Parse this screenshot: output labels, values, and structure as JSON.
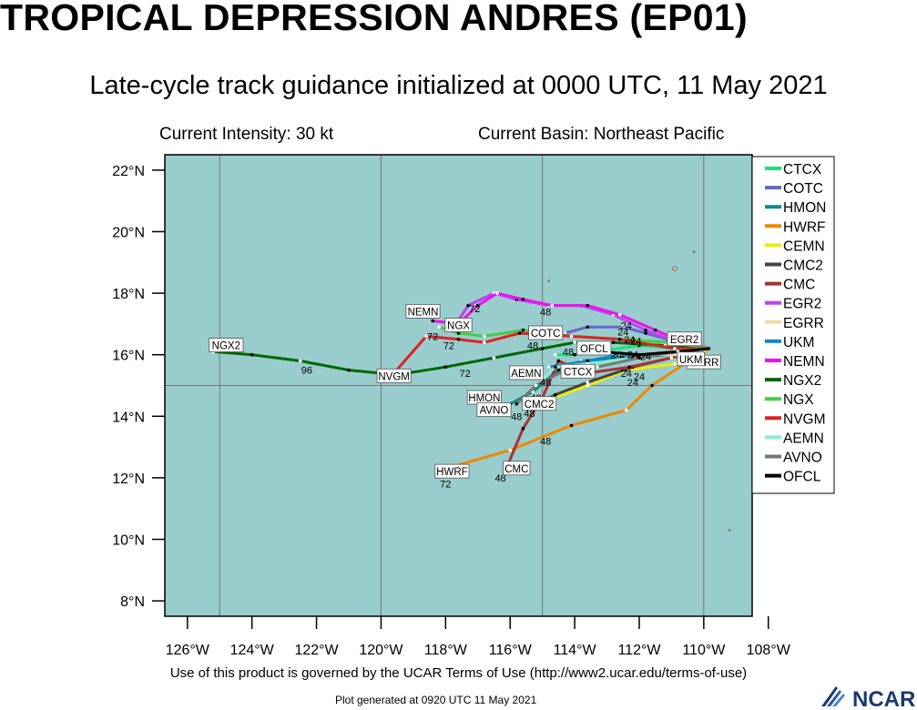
{
  "header": {
    "title": "TROPICAL DEPRESSION ANDRES (EP01)",
    "subtitle": "Late-cycle track guidance initialized at 0000 UTC, 11 May 2021",
    "intensity": "Current Intensity: 30 kt",
    "basin": "Current Basin: Northeast Pacific"
  },
  "footer": {
    "terms": "Use of this product is governed by the UCAR Terms of Use (http://www2.ucar.edu/terms-of-use)",
    "generated": "Plot generated at 0920 UTC   11 May 2021",
    "logo_text": "NCAR"
  },
  "chart_data": {
    "type": "line",
    "title": "TROPICAL DEPRESSION ANDRES (EP01)",
    "subtitle": "Late-cycle track guidance initialized at 0000 UTC, 11 May 2021",
    "xlabel": "",
    "ylabel": "",
    "xlim": [
      -126.7,
      -108.5
    ],
    "ylim": [
      7.5,
      22.5
    ],
    "x_ticks": [
      -126,
      -124,
      -122,
      -120,
      -118,
      -116,
      -114,
      -112,
      -110,
      -108
    ],
    "x_tick_labels": [
      "126°W",
      "124°W",
      "122°W",
      "120°W",
      "118°W",
      "116°W",
      "114°W",
      "112°W",
      "110°W",
      "108°W"
    ],
    "y_ticks": [
      8,
      10,
      12,
      14,
      16,
      18,
      20,
      22
    ],
    "y_tick_labels": [
      "8°N",
      "10°N",
      "12°N",
      "14°N",
      "16°N",
      "18°N",
      "20°N",
      "22°N"
    ],
    "grid": true,
    "grid_lines_x": [
      -125,
      -120,
      -115,
      -110
    ],
    "grid_lines_y": [
      15
    ],
    "colors": {
      "ocean": "#99cccc",
      "land": "#d8b48c",
      "frame": "#000000"
    },
    "legend_position": "right",
    "series": [
      {
        "name": "CTCX",
        "color": "#22dd77",
        "points": [
          [
            -109.8,
            16.2
          ],
          [
            -110.8,
            16.2
          ],
          [
            -112.0,
            16.3
          ],
          [
            -113.3,
            16.1
          ],
          [
            -114.0,
            16.0
          ],
          [
            -114.6,
            16.0
          ]
        ],
        "labels": [
          {
            "text": "CTCX",
            "lon": -113.9,
            "lat": 15.45,
            "box": true
          }
        ]
      },
      {
        "name": "COTC",
        "color": "#6666cc",
        "points": [
          [
            -109.8,
            16.2
          ],
          [
            -110.8,
            16.4
          ],
          [
            -111.8,
            16.7
          ],
          [
            -112.5,
            16.9
          ],
          [
            -113.6,
            16.9
          ],
          [
            -114.3,
            16.7
          ],
          [
            -115.0,
            16.6
          ]
        ],
        "labels": [
          {
            "text": "COTC",
            "lon": -114.9,
            "lat": 16.7,
            "box": true
          }
        ]
      },
      {
        "name": "HMON",
        "color": "#118888",
        "points": [
          [
            -109.8,
            16.2
          ],
          [
            -111.0,
            16.0
          ],
          [
            -112.5,
            15.9
          ],
          [
            -113.8,
            15.8
          ],
          [
            -114.5,
            15.5
          ],
          [
            -115.3,
            14.8
          ],
          [
            -116.0,
            14.4
          ]
        ],
        "labels": [
          {
            "text": "HMON",
            "lon": -116.8,
            "lat": 14.6,
            "box": true
          },
          {
            "text": "48",
            "lon": -115.2,
            "lat": 14.6,
            "box": false
          }
        ]
      },
      {
        "name": "HWRF",
        "color": "#ee8800",
        "points": [
          [
            -109.8,
            16.2
          ],
          [
            -110.6,
            15.7
          ],
          [
            -111.6,
            15.0
          ],
          [
            -112.4,
            14.2
          ],
          [
            -114.1,
            13.7
          ],
          [
            -116.0,
            12.9
          ],
          [
            -118.0,
            12.3
          ]
        ],
        "labels": [
          {
            "text": "HWRF",
            "lon": -117.8,
            "lat": 12.2,
            "box": true
          },
          {
            "text": "48",
            "lon": -114.9,
            "lat": 13.2,
            "box": false
          },
          {
            "text": "72",
            "lon": -118.0,
            "lat": 11.8,
            "box": false
          }
        ]
      },
      {
        "name": "CEMN",
        "color": "#eeee00",
        "points": [
          [
            -109.8,
            16.2
          ],
          [
            -110.9,
            15.7
          ],
          [
            -112.4,
            15.5
          ],
          [
            -113.6,
            15.0
          ],
          [
            -114.9,
            14.5
          ]
        ],
        "labels": []
      },
      {
        "name": "CMC2",
        "color": "#444444",
        "points": [
          [
            -109.8,
            16.2
          ],
          [
            -111.0,
            15.9
          ],
          [
            -112.2,
            15.6
          ],
          [
            -113.6,
            15.1
          ],
          [
            -114.6,
            14.7
          ],
          [
            -115.3,
            14.3
          ]
        ],
        "labels": [
          {
            "text": "CMC2",
            "lon": -115.1,
            "lat": 14.4,
            "box": true
          },
          {
            "text": "48",
            "lon": -115.4,
            "lat": 14.1,
            "box": false
          }
        ]
      },
      {
        "name": "CMC",
        "color": "#aa3333",
        "points": [
          [
            -109.8,
            16.2
          ],
          [
            -111.0,
            15.9
          ],
          [
            -112.3,
            15.6
          ],
          [
            -113.6,
            15.4
          ],
          [
            -114.5,
            15.8
          ],
          [
            -115.0,
            14.6
          ],
          [
            -115.6,
            13.6
          ],
          [
            -116.2,
            12.1
          ]
        ],
        "labels": [
          {
            "text": "CMC",
            "lon": -115.8,
            "lat": 12.3,
            "box": true
          },
          {
            "text": "48",
            "lon": -116.3,
            "lat": 12.0,
            "box": false
          }
        ]
      },
      {
        "name": "EGR2",
        "color": "#bb44ee",
        "points": [
          [
            -109.8,
            16.2
          ],
          [
            -110.8,
            16.4
          ],
          [
            -111.8,
            16.8
          ],
          [
            -112.8,
            17.3
          ],
          [
            -113.8,
            17.6
          ],
          [
            -114.8,
            17.6
          ],
          [
            -115.8,
            17.8
          ],
          [
            -116.5,
            18.0
          ],
          [
            -117.3,
            17.6
          ],
          [
            -117.8,
            16.8
          ]
        ],
        "labels": [
          {
            "text": "EGR2",
            "lon": -110.6,
            "lat": 16.5,
            "box": true
          },
          {
            "text": "48",
            "lon": -114.9,
            "lat": 17.4,
            "box": false
          },
          {
            "text": "72",
            "lon": -117.1,
            "lat": 17.5,
            "box": false
          }
        ]
      },
      {
        "name": "EGRR",
        "color": "#eeddaa",
        "points": [
          [
            -109.8,
            16.2
          ],
          [
            -110.6,
            16.0
          ],
          [
            -111.5,
            16.0
          ]
        ],
        "labels": [
          {
            "text": "EGRR",
            "lon": -110.0,
            "lat": 15.75,
            "box": true
          }
        ]
      },
      {
        "name": "UKM",
        "color": "#1188cc",
        "points": [
          [
            -109.8,
            16.2
          ],
          [
            -110.7,
            16.1
          ],
          [
            -111.6,
            16.0
          ],
          [
            -112.6,
            16.0
          ],
          [
            -113.6,
            15.8
          ],
          [
            -114.8,
            15.6
          ]
        ],
        "labels": [
          {
            "text": "UKM",
            "lon": -110.4,
            "lat": 15.85,
            "box": true
          }
        ]
      },
      {
        "name": "NEMN",
        "color": "#ee11ee",
        "points": [
          [
            -109.8,
            16.2
          ],
          [
            -110.6,
            16.4
          ],
          [
            -111.5,
            16.8
          ],
          [
            -112.6,
            17.3
          ],
          [
            -113.6,
            17.6
          ],
          [
            -114.7,
            17.6
          ],
          [
            -115.6,
            17.8
          ],
          [
            -116.4,
            18.0
          ],
          [
            -117.0,
            17.6
          ],
          [
            -117.6,
            17.0
          ],
          [
            -118.4,
            17.1
          ]
        ],
        "labels": [
          {
            "text": "NEMN",
            "lon": -118.7,
            "lat": 17.4,
            "box": true
          }
        ]
      },
      {
        "name": "NGX2",
        "color": "#006600",
        "points": [
          [
            -109.8,
            16.2
          ],
          [
            -111.2,
            16.3
          ],
          [
            -112.8,
            16.4
          ],
          [
            -114.0,
            16.4
          ],
          [
            -115.0,
            16.2
          ],
          [
            -116.5,
            15.9
          ],
          [
            -118.0,
            15.6
          ],
          [
            -119.5,
            15.35
          ],
          [
            -121.0,
            15.5
          ],
          [
            -122.5,
            15.8
          ],
          [
            -124.0,
            16.0
          ],
          [
            -125.2,
            16.1
          ]
        ],
        "labels": [
          {
            "text": "NGX2",
            "lon": -124.8,
            "lat": 16.3,
            "box": true
          },
          {
            "text": "NVGM",
            "lon": -119.6,
            "lat": 15.3,
            "box": true
          },
          {
            "text": "72",
            "lon": -117.4,
            "lat": 15.4,
            "box": false
          },
          {
            "text": "96",
            "lon": -122.3,
            "lat": 15.5,
            "box": false
          }
        ]
      },
      {
        "name": "NGX",
        "color": "#44cc44",
        "points": [
          [
            -109.8,
            16.2
          ],
          [
            -111.0,
            16.4
          ],
          [
            -112.6,
            16.5
          ],
          [
            -114.0,
            16.6
          ],
          [
            -115.6,
            16.8
          ],
          [
            -116.8,
            16.6
          ],
          [
            -117.6,
            16.7
          ],
          [
            -118.2,
            16.9
          ]
        ],
        "labels": [
          {
            "text": "NGX",
            "lon": -117.6,
            "lat": 16.95,
            "box": true
          },
          {
            "text": "72",
            "lon": -118.4,
            "lat": 16.6,
            "box": false
          }
        ]
      },
      {
        "name": "NVGM",
        "color": "#dd2222",
        "points": [
          [
            -109.8,
            16.2
          ],
          [
            -110.9,
            16.2
          ],
          [
            -112.6,
            16.5
          ],
          [
            -114.1,
            16.6
          ],
          [
            -115.7,
            16.7
          ],
          [
            -116.8,
            16.4
          ],
          [
            -117.6,
            16.5
          ],
          [
            -118.6,
            16.6
          ],
          [
            -119.6,
            15.4
          ]
        ],
        "labels": [
          {
            "text": "72",
            "lon": -117.9,
            "lat": 16.3,
            "box": false
          },
          {
            "text": "48",
            "lon": -115.3,
            "lat": 16.3,
            "box": false
          }
        ]
      },
      {
        "name": "AEMN",
        "color": "#88eecc",
        "points": [
          [
            -109.8,
            16.2
          ],
          [
            -110.9,
            16.1
          ],
          [
            -112.2,
            15.9
          ],
          [
            -113.6,
            15.7
          ],
          [
            -114.6,
            15.6
          ],
          [
            -115.0,
            15.2
          ]
        ],
        "labels": [
          {
            "text": "AEMN",
            "lon": -115.5,
            "lat": 15.4,
            "box": true
          },
          {
            "text": "48",
            "lon": -114.9,
            "lat": 15.1,
            "box": false
          }
        ]
      },
      {
        "name": "AVNO",
        "color": "#777777",
        "points": [
          [
            -109.8,
            16.2
          ],
          [
            -110.8,
            16.1
          ],
          [
            -112.0,
            15.9
          ],
          [
            -113.3,
            15.6
          ],
          [
            -114.3,
            15.5
          ],
          [
            -115.2,
            15.0
          ],
          [
            -115.8,
            14.4
          ]
        ],
        "labels": [
          {
            "text": "AVNO",
            "lon": -116.5,
            "lat": 14.2,
            "box": true
          },
          {
            "text": "48",
            "lon": -115.8,
            "lat": 14.0,
            "box": false
          }
        ]
      },
      {
        "name": "OFCL",
        "color": "#000000",
        "points": [
          [
            -109.8,
            16.2
          ],
          [
            -110.8,
            16.1
          ],
          [
            -112.0,
            16.0
          ],
          [
            -113.2,
            16.1
          ]
        ],
        "labels": [
          {
            "text": "OFCL",
            "lon": -113.4,
            "lat": 16.2,
            "box": true
          },
          {
            "text": "48",
            "lon": -114.2,
            "lat": 16.1,
            "box": false
          }
        ]
      }
    ],
    "forecast_hour_labels": [
      {
        "text": "24",
        "lon": -112.4,
        "lat": 16.95
      },
      {
        "text": "24",
        "lon": -112.5,
        "lat": 16.75
      },
      {
        "text": "24",
        "lon": -112.3,
        "lat": 16.5
      },
      {
        "text": "24",
        "lon": -112.1,
        "lat": 16.45
      },
      {
        "text": "24",
        "lon": -112.7,
        "lat": 16.0
      },
      {
        "text": "24",
        "lon": -112.2,
        "lat": 16.0
      },
      {
        "text": "24",
        "lon": -111.8,
        "lat": 15.95
      },
      {
        "text": "24",
        "lon": -112.4,
        "lat": 15.4
      },
      {
        "text": "24",
        "lon": -112.0,
        "lat": 15.3
      },
      {
        "text": "24",
        "lon": -112.2,
        "lat": 15.1
      }
    ],
    "island_markers": [
      {
        "lon": -110.9,
        "lat": 18.8
      },
      {
        "lon": -110.3,
        "lat": 19.35
      },
      {
        "lon": -109.2,
        "lat": 10.3
      },
      {
        "lon": -114.8,
        "lat": 18.4
      }
    ]
  }
}
